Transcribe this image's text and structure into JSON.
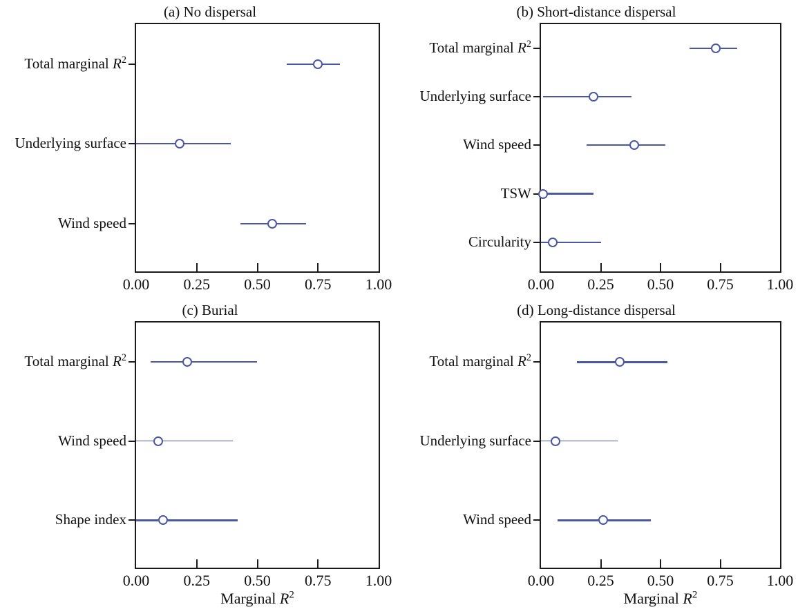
{
  "figure": {
    "background_color": "#ffffff",
    "accent_color": "#4a57a3",
    "frame_color": "#1a1a1a",
    "marker_style": "open-circle",
    "grid": false,
    "legend": null
  },
  "chart_data": [
    {
      "type": "scatter",
      "id": "a",
      "title": "(a) No dispersal",
      "xlabel": "",
      "xlim": [
        0,
        1
      ],
      "x_ticks": [
        0,
        0.25,
        0.5,
        0.75,
        1
      ],
      "x_tick_labels": [
        "0.00",
        "0.25",
        "0.50",
        "0.75",
        "1.00"
      ],
      "items": [
        {
          "label": "Total marginal R²",
          "value": 0.75,
          "ci_low": 0.62,
          "ci_high": 0.84,
          "line_weight": 2
        },
        {
          "label": "Underlying surface",
          "value": 0.18,
          "ci_low": 0.0,
          "ci_high": 0.39,
          "line_weight": 2
        },
        {
          "label": "Wind speed",
          "value": 0.56,
          "ci_low": 0.43,
          "ci_high": 0.7,
          "line_weight": 2
        }
      ]
    },
    {
      "type": "scatter",
      "id": "b",
      "title": "(b) Short-distance dispersal",
      "xlabel": "",
      "xlim": [
        0,
        1
      ],
      "x_ticks": [
        0,
        0.25,
        0.5,
        0.75,
        1
      ],
      "x_tick_labels": [
        "0.00",
        "0.25",
        "0.50",
        "0.75",
        "1.00"
      ],
      "items": [
        {
          "label": "Total marginal R²",
          "value": 0.73,
          "ci_low": 0.62,
          "ci_high": 0.82,
          "line_weight": 1.8
        },
        {
          "label": "Underlying surface",
          "value": 0.22,
          "ci_low": 0.01,
          "ci_high": 0.38,
          "line_weight": 2
        },
        {
          "label": "Wind speed",
          "value": 0.39,
          "ci_low": 0.19,
          "ci_high": 0.52,
          "line_weight": 2
        },
        {
          "label": "TSW",
          "value": 0.01,
          "ci_low": 0.0,
          "ci_high": 0.22,
          "line_weight": 2.5
        },
        {
          "label": "Circularity",
          "value": 0.05,
          "ci_low": 0.0,
          "ci_high": 0.25,
          "line_weight": 2.5
        }
      ]
    },
    {
      "type": "scatter",
      "id": "c",
      "title": "(c) Burial",
      "xlabel": "Marginal R²",
      "xlim": [
        0,
        1
      ],
      "x_ticks": [
        0,
        0.25,
        0.5,
        0.75,
        1
      ],
      "x_tick_labels": [
        "0.00",
        "0.25",
        "0.50",
        "0.75",
        "1.00"
      ],
      "items": [
        {
          "label": "Total marginal R²",
          "value": 0.21,
          "ci_low": 0.06,
          "ci_high": 0.5,
          "line_weight": 2.3
        },
        {
          "label": "Wind speed",
          "value": 0.09,
          "ci_low": 0.0,
          "ci_high": 0.4,
          "line_weight": 1.4
        },
        {
          "label": "Shape index",
          "value": 0.11,
          "ci_low": 0.0,
          "ci_high": 0.42,
          "line_weight": 3
        }
      ]
    },
    {
      "type": "scatter",
      "id": "d",
      "title": "(d) Long-distance dispersal",
      "xlabel": "Marginal R²",
      "xlim": [
        0,
        1
      ],
      "x_ticks": [
        0,
        0.25,
        0.5,
        0.75,
        1
      ],
      "x_tick_labels": [
        "0.00",
        "0.25",
        "0.50",
        "0.75",
        "1.00"
      ],
      "items": [
        {
          "label": "Total marginal R²",
          "value": 0.33,
          "ci_low": 0.15,
          "ci_high": 0.53,
          "line_weight": 3
        },
        {
          "label": "Underlying surface",
          "value": 0.06,
          "ci_low": 0.0,
          "ci_high": 0.32,
          "line_weight": 1.4
        },
        {
          "label": "Wind speed",
          "value": 0.26,
          "ci_low": 0.07,
          "ci_high": 0.46,
          "line_weight": 3
        }
      ]
    }
  ]
}
